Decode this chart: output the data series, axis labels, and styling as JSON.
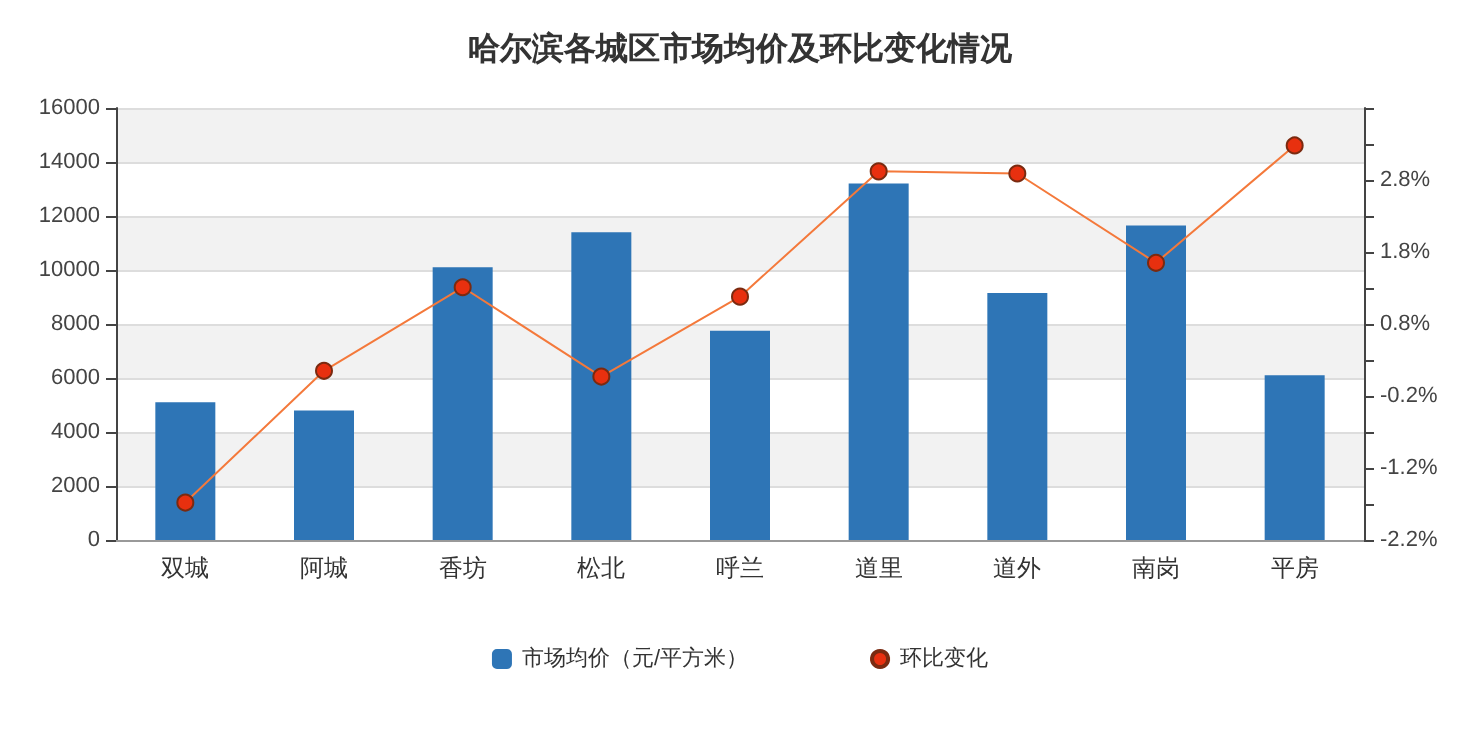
{
  "chart_data": {
    "type": "bar",
    "title": "哈尔滨各城区市场均价及环比变化情况",
    "categories": [
      "双城",
      "阿城",
      "香坊",
      "松北",
      "呼兰",
      "道里",
      "道外",
      "南岗",
      "平房"
    ],
    "series": [
      {
        "name": "市场均价（元/平方米）",
        "color": "#2e75b6",
        "values": [
          5100,
          4800,
          10100,
          11400,
          7750,
          13200,
          9150,
          11650,
          6100
        ]
      },
      {
        "name": "环比变化",
        "type": "line",
        "axis": "y2",
        "color": "#f4793b",
        "marker": "circle",
        "values": [
          -1.68,
          0.15,
          1.31,
          0.07,
          1.18,
          2.92,
          2.89,
          1.65,
          3.28
        ]
      }
    ],
    "ylim": [
      0,
      16000
    ],
    "yticks": [
      0,
      2000,
      4000,
      6000,
      8000,
      10000,
      12000,
      14000,
      16000
    ],
    "y2lim": [
      -2.2,
      3.8
    ],
    "y2ticks": [
      {
        "value": -2.2,
        "label": "-2.2%"
      },
      {
        "value": -1.7,
        "label": null
      },
      {
        "value": -1.2,
        "label": "-1.2%"
      },
      {
        "value": -0.7,
        "label": null
      },
      {
        "value": -0.2,
        "label": "-0.2%"
      },
      {
        "value": 0.3,
        "label": null
      },
      {
        "value": 0.8,
        "label": "0.8%"
      },
      {
        "value": 1.3,
        "label": null
      },
      {
        "value": 1.8,
        "label": "1.8%"
      },
      {
        "value": 2.3,
        "label": null
      },
      {
        "value": 2.8,
        "label": "2.8%"
      },
      {
        "value": 3.3,
        "label": null
      },
      {
        "value": 3.8,
        "label": null
      }
    ],
    "grid": "y",
    "legend": "bottom"
  }
}
